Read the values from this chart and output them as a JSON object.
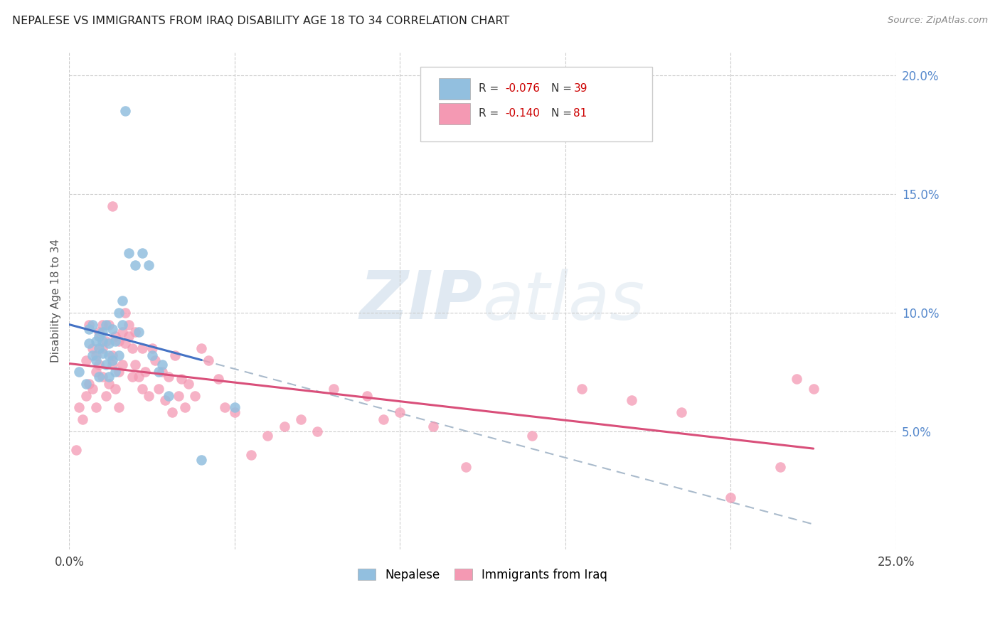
{
  "title": "NEPALESE VS IMMIGRANTS FROM IRAQ DISABILITY AGE 18 TO 34 CORRELATION CHART",
  "source": "Source: ZipAtlas.com",
  "ylabel": "Disability Age 18 to 34",
  "xlim": [
    0.0,
    0.25
  ],
  "ylim": [
    0.0,
    0.21
  ],
  "yticks": [
    0.05,
    0.1,
    0.15,
    0.2
  ],
  "ytick_labels": [
    "5.0%",
    "10.0%",
    "15.0%",
    "20.0%"
  ],
  "blue_color": "#92bfdf",
  "pink_color": "#f499b3",
  "trendline_blue_color": "#4472c4",
  "trendline_pink_color": "#d94f7a",
  "trendline_dash_color": "#aabbcc",
  "watermark_zip": "ZIP",
  "watermark_atlas": "atlas",
  "nepalese_x": [
    0.003,
    0.005,
    0.006,
    0.006,
    0.007,
    0.007,
    0.008,
    0.008,
    0.009,
    0.009,
    0.009,
    0.01,
    0.01,
    0.01,
    0.011,
    0.011,
    0.012,
    0.012,
    0.012,
    0.013,
    0.013,
    0.014,
    0.014,
    0.015,
    0.015,
    0.016,
    0.016,
    0.017,
    0.018,
    0.02,
    0.021,
    0.022,
    0.024,
    0.025,
    0.027,
    0.028,
    0.03,
    0.04,
    0.05
  ],
  "nepalese_y": [
    0.075,
    0.07,
    0.087,
    0.093,
    0.082,
    0.095,
    0.08,
    0.088,
    0.085,
    0.09,
    0.073,
    0.083,
    0.088,
    0.092,
    0.078,
    0.095,
    0.082,
    0.087,
    0.073,
    0.08,
    0.093,
    0.075,
    0.088,
    0.082,
    0.1,
    0.095,
    0.105,
    0.185,
    0.125,
    0.12,
    0.092,
    0.125,
    0.12,
    0.082,
    0.075,
    0.078,
    0.065,
    0.038,
    0.06
  ],
  "iraq_x": [
    0.002,
    0.003,
    0.004,
    0.005,
    0.005,
    0.006,
    0.006,
    0.007,
    0.007,
    0.008,
    0.008,
    0.008,
    0.009,
    0.009,
    0.01,
    0.01,
    0.01,
    0.011,
    0.011,
    0.012,
    0.012,
    0.013,
    0.013,
    0.013,
    0.014,
    0.014,
    0.015,
    0.015,
    0.015,
    0.016,
    0.016,
    0.017,
    0.017,
    0.018,
    0.018,
    0.019,
    0.019,
    0.02,
    0.02,
    0.021,
    0.022,
    0.022,
    0.023,
    0.024,
    0.025,
    0.026,
    0.027,
    0.028,
    0.029,
    0.03,
    0.031,
    0.032,
    0.033,
    0.034,
    0.035,
    0.036,
    0.038,
    0.04,
    0.042,
    0.045,
    0.047,
    0.05,
    0.055,
    0.06,
    0.065,
    0.07,
    0.075,
    0.08,
    0.09,
    0.095,
    0.1,
    0.11,
    0.12,
    0.14,
    0.155,
    0.17,
    0.185,
    0.2,
    0.215,
    0.22,
    0.225
  ],
  "iraq_y": [
    0.042,
    0.06,
    0.055,
    0.065,
    0.08,
    0.07,
    0.095,
    0.068,
    0.085,
    0.075,
    0.06,
    0.082,
    0.078,
    0.092,
    0.073,
    0.085,
    0.095,
    0.065,
    0.088,
    0.07,
    0.095,
    0.078,
    0.082,
    0.145,
    0.068,
    0.09,
    0.06,
    0.088,
    0.075,
    0.092,
    0.078,
    0.087,
    0.1,
    0.09,
    0.095,
    0.085,
    0.073,
    0.078,
    0.092,
    0.073,
    0.085,
    0.068,
    0.075,
    0.065,
    0.085,
    0.08,
    0.068,
    0.075,
    0.063,
    0.073,
    0.058,
    0.082,
    0.065,
    0.072,
    0.06,
    0.07,
    0.065,
    0.085,
    0.08,
    0.072,
    0.06,
    0.058,
    0.04,
    0.048,
    0.052,
    0.055,
    0.05,
    0.068,
    0.065,
    0.055,
    0.058,
    0.052,
    0.035,
    0.048,
    0.068,
    0.063,
    0.058,
    0.022,
    0.035,
    0.072,
    0.068
  ]
}
